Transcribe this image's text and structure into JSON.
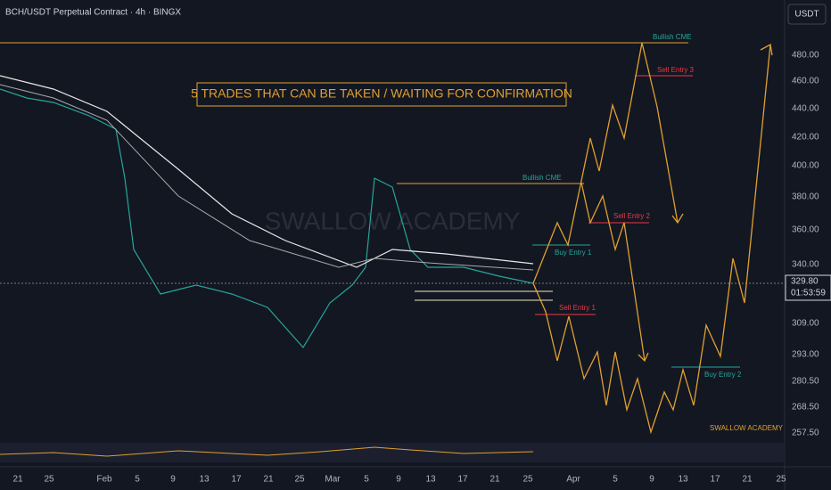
{
  "header": {
    "title": "BCH/USDT Perpetual Contract · 4h · BINGX",
    "currency": "USDT"
  },
  "banner": "5 TRADES THAT CAN BE TAKEN / WAITING FOR CONFIRMATION",
  "watermark": "SWALLOW ACADEMY",
  "signature": "SWALLOW ACADEMY",
  "annotations": {
    "bullish_cme_top": "Bullish CME",
    "sell_entry_3": "Sell Entry 3",
    "bullish_cme_mid": "Bullish CME",
    "sell_entry_2": "Sell Entry 2",
    "buy_entry_1": "Buy Entry 1",
    "sell_entry_1": "Sell Entry 1",
    "buy_entry_2": "Buy Entry 2"
  },
  "price_axis": [
    "480.00",
    "460.00",
    "440.00",
    "420.00",
    "400.00",
    "380.00",
    "360.00",
    "340.00",
    "309.00",
    "293.00",
    "280.50",
    "268.50",
    "257.50"
  ],
  "current_price": {
    "price": "329.80",
    "countdown": "01:53:59"
  },
  "time_axis": [
    "21",
    "25",
    "Feb",
    "5",
    "9",
    "13",
    "17",
    "21",
    "25",
    "Mar",
    "5",
    "9",
    "13",
    "17",
    "21",
    "25",
    "Apr",
    "5",
    "9",
    "13",
    "17",
    "21",
    "25"
  ]
}
